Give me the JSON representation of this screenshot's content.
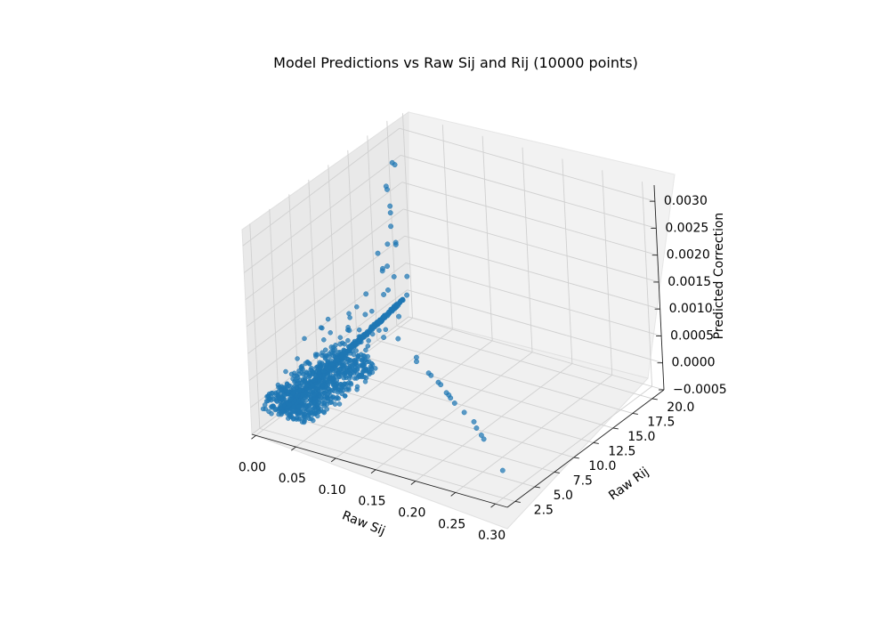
{
  "chart_data": {
    "type": "scatter",
    "title": "Model Predictions vs Raw Sij and Rij (10000 points)",
    "xlabel": "Raw Sij",
    "ylabel": "Raw Rij",
    "zlabel": "Predicted Correction",
    "xlim": [
      -0.005,
      0.315
    ],
    "ylim": [
      1.5,
      21.5
    ],
    "zlim": [
      -0.0005,
      0.0033
    ],
    "xticks": [
      "0.00",
      "0.05",
      "0.10",
      "0.15",
      "0.20",
      "0.25",
      "0.30"
    ],
    "yticks": [
      "2.5",
      "5.0",
      "7.5",
      "10.0",
      "12.5",
      "15.0",
      "17.5",
      "20.0"
    ],
    "zticks": [
      "−0.0005",
      "0.0000",
      "0.0005",
      "0.0010",
      "0.0015",
      "0.0020",
      "0.0025",
      "0.0030"
    ],
    "grid": true,
    "marker_color": "#1f77b4",
    "points": [
      [
        0.3,
        2.6,
        0.0
      ],
      [
        0.245,
        5.8,
        0.0
      ],
      [
        0.238,
        6.2,
        0.0
      ],
      [
        0.225,
        6.9,
        0.0
      ],
      [
        0.215,
        7.6,
        0.0
      ],
      [
        0.195,
        8.4,
        0.0
      ],
      [
        0.175,
        9.2,
        0.0
      ],
      [
        0.165,
        9.7,
        0.0
      ],
      [
        0.16,
        10.0,
        0.0
      ],
      [
        0.155,
        10.2,
        0.0
      ],
      [
        0.14,
        11.0,
        0.0
      ],
      [
        0.135,
        11.2,
        0.0
      ],
      [
        0.12,
        11.8,
        0.0
      ],
      [
        0.115,
        12.0,
        0.0
      ],
      [
        0.09,
        13.0,
        0.0
      ],
      [
        0.085,
        13.5,
        0.0
      ],
      [
        0.03,
        17.0,
        0.003
      ],
      [
        0.028,
        17.5,
        0.0029
      ],
      [
        0.026,
        16.5,
        0.0026
      ],
      [
        0.024,
        16.8,
        0.0025
      ],
      [
        0.04,
        15.5,
        0.0024
      ],
      [
        0.035,
        16.0,
        0.0022
      ],
      [
        0.045,
        15.0,
        0.0021
      ],
      [
        0.05,
        14.0,
        0.0019
      ],
      [
        0.042,
        15.8,
        0.0017
      ],
      [
        0.038,
        16.2,
        0.0016
      ],
      [
        0.032,
        14.5,
        0.0016
      ],
      [
        0.044,
        13.8,
        0.0014
      ],
      [
        0.036,
        15.2,
        0.0013
      ],
      [
        0.028,
        15.4,
        0.0012
      ],
      [
        0.048,
        14.8,
        0.0012
      ],
      [
        0.052,
        13.6,
        0.0011
      ],
      [
        0.03,
        13.0,
        0.001
      ],
      [
        0.046,
        16.6,
        0.001
      ],
      [
        0.04,
        14.2,
        0.0009
      ],
      [
        0.055,
        15.6,
        0.0008
      ],
      [
        0.034,
        12.4,
        0.0007
      ],
      [
        0.05,
        12.8,
        0.0006
      ],
      [
        0.06,
        14.0,
        0.0006
      ],
      [
        0.025,
        11.2,
        0.0005
      ],
      [
        0.038,
        11.8,
        0.0004
      ],
      [
        0.058,
        12.2,
        0.0004
      ],
      [
        0.066,
        13.2,
        0.0003
      ],
      [
        0.02,
        10.5,
        0.0003
      ]
    ]
  }
}
